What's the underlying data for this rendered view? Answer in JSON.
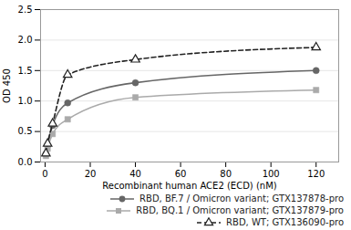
{
  "chart_data": {
    "type": "line",
    "xlabel": "Recombinant human ACE2 (ECD) (nM)",
    "ylabel": "OD 450",
    "x": [
      0.37,
      1.11,
      3.33,
      10,
      40,
      120
    ],
    "series": [
      {
        "name": "RBD, BF.7 / Omicron variant; GTX137878-pro",
        "color": "#666666",
        "marker": "circle",
        "line_style": "solid",
        "values": [
          0.13,
          0.27,
          0.6,
          0.97,
          1.3,
          1.5
        ]
      },
      {
        "name": "RBD, BQ.1 / Omicron variant; GTX137879-pro",
        "color": "#aaaaaa",
        "marker": "square",
        "line_style": "solid",
        "values": [
          0.1,
          0.22,
          0.46,
          0.7,
          1.06,
          1.18
        ]
      },
      {
        "name": "RBD, WT; GTX136090-pro",
        "color": "#222222",
        "marker": "open triangle",
        "line_style": "dashed",
        "values": [
          0.14,
          0.3,
          0.63,
          1.43,
          1.68,
          1.88
        ]
      }
    ],
    "xlim": [
      -2,
      130
    ],
    "xticks": [
      0,
      20,
      40,
      60,
      80,
      100,
      120
    ],
    "ylim": [
      0,
      2.5
    ],
    "yticks": [
      {
        "value": 0,
        "label": "0.0"
      },
      0.5,
      {
        "value": 1,
        "label": "1.0"
      },
      1.5,
      {
        "value": 2,
        "label": "2.0"
      },
      2.5
    ],
    "grid": "y",
    "legend": "lower right"
  }
}
